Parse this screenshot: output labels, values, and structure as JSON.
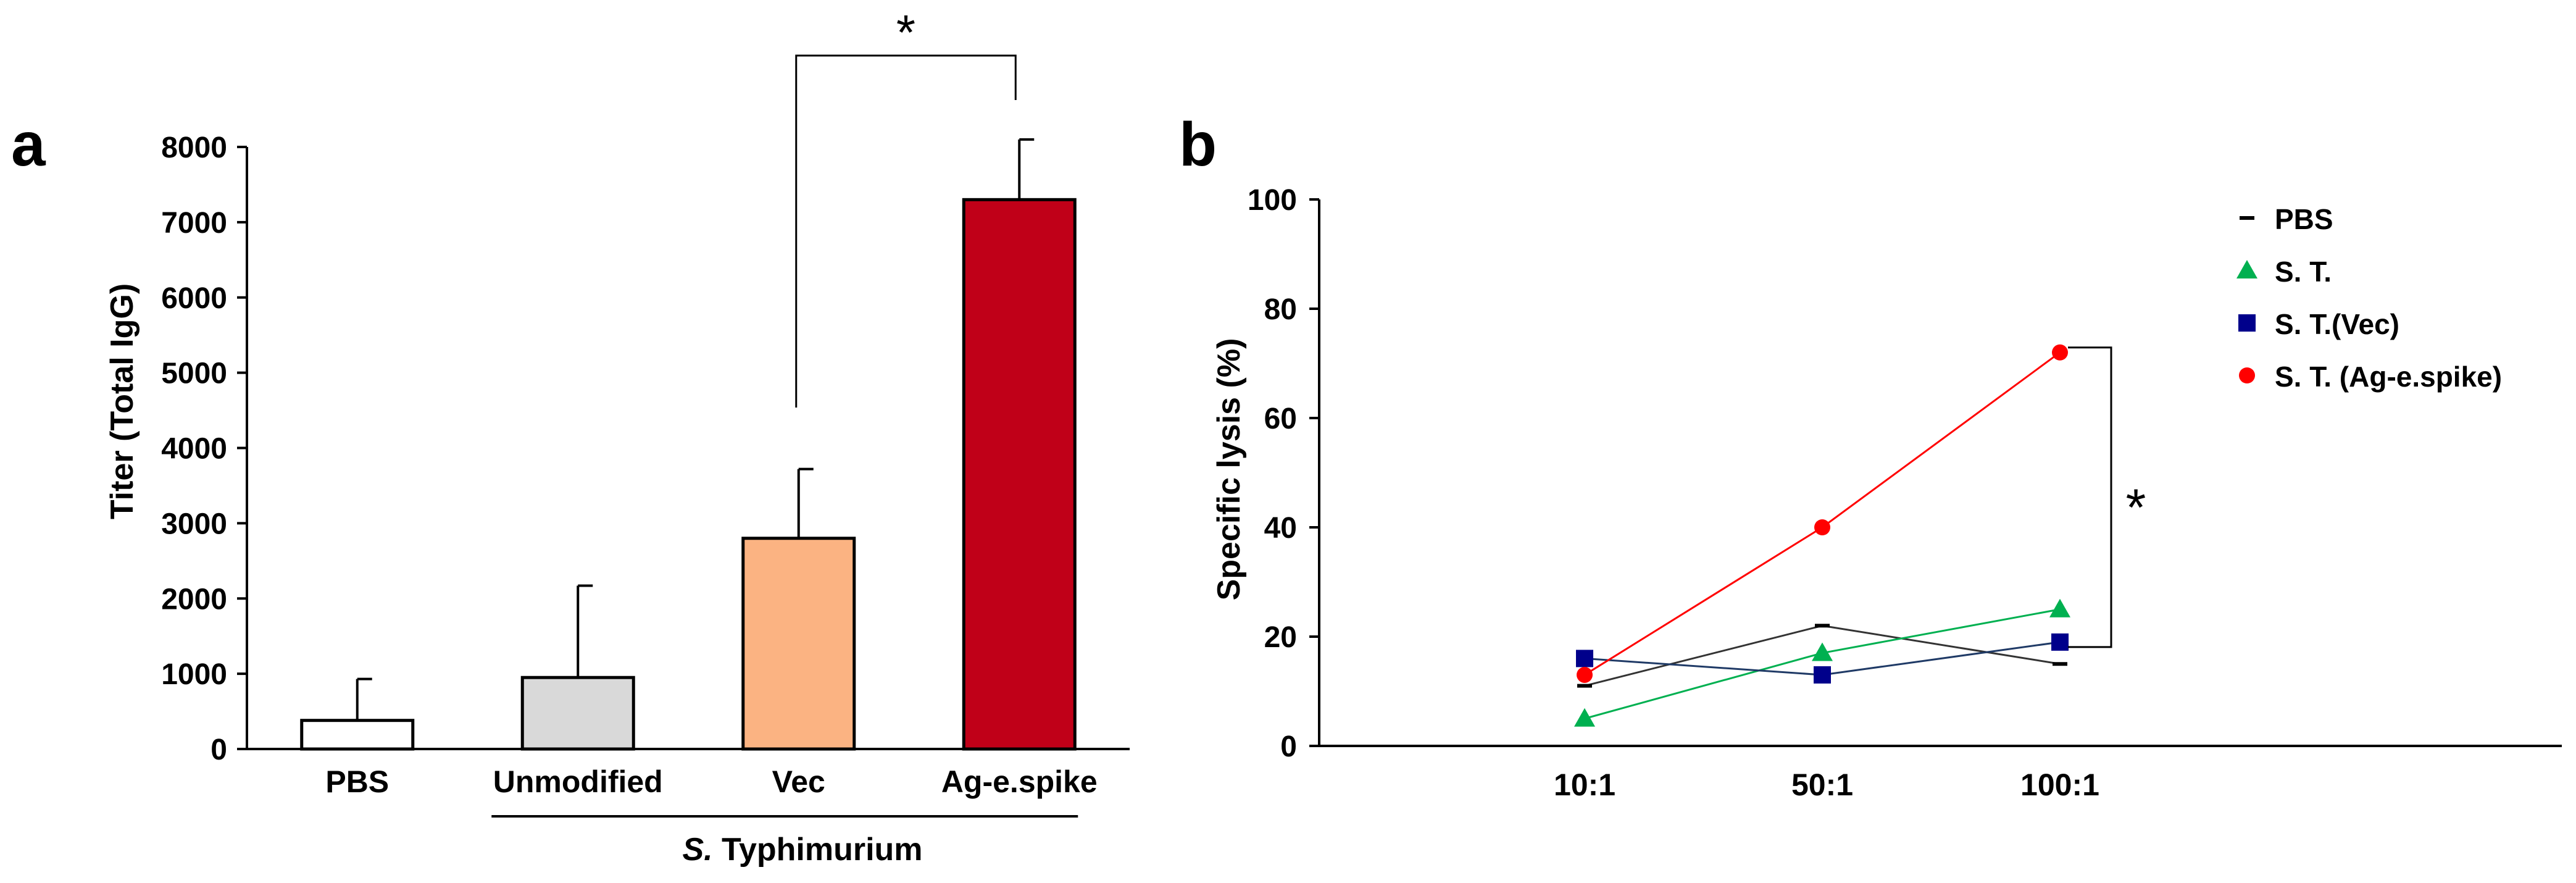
{
  "chart_data": [
    {
      "panel_label": "a",
      "type": "bar",
      "categories": [
        "PBS",
        "Unmodified",
        "Vec",
        "Ag-e.spike"
      ],
      "values": [
        380,
        950,
        2800,
        7300
      ],
      "error_upper": [
        930,
        2170,
        3720,
        8100
      ],
      "colors": [
        "#ffffff",
        "#d9d9d9",
        "#fbb382",
        "#c00018"
      ],
      "ylabel": "Titer (Total IgG)",
      "ylim": [
        0,
        8000
      ],
      "yticks": [
        "0",
        "1000",
        "2000",
        "3000",
        "4000",
        "5000",
        "6000",
        "7000",
        "8000"
      ],
      "group_label_italic": "S.",
      "group_label_rest": " Typhimurium",
      "group_categories": [
        "Unmodified",
        "Vec",
        "Ag-e.spike"
      ],
      "significance": {
        "between": [
          "Vec",
          "Ag-e.spike"
        ],
        "mark": "*"
      }
    },
    {
      "panel_label": "b",
      "type": "line",
      "x": [
        "10:1",
        "50:1",
        "100:1"
      ],
      "ylabel": "Specific lysis (%)",
      "ylim": [
        0,
        100
      ],
      "yticks": [
        "0",
        "20",
        "40",
        "60",
        "80",
        "100"
      ],
      "legend_position": "top-right",
      "series": [
        {
          "name": "PBS",
          "marker": "dash",
          "color": "#000000",
          "line_color": "#333333",
          "values": [
            11,
            22,
            15
          ]
        },
        {
          "name": "S. T.",
          "marker": "triangle",
          "color": "#00b050",
          "line_color": "#00b050",
          "values": [
            5,
            17,
            25
          ]
        },
        {
          "name": "S. T.(Vec)",
          "marker": "square",
          "color": "#00008b",
          "line_color": "#1f3a66",
          "values": [
            16,
            13,
            19
          ]
        },
        {
          "name": "S. T. (Ag-e.spike)",
          "marker": "circle",
          "color": "#ff0000",
          "line_color": "#ff0000",
          "values": [
            13,
            40,
            72
          ]
        }
      ],
      "significance": {
        "mark": "*"
      }
    }
  ]
}
